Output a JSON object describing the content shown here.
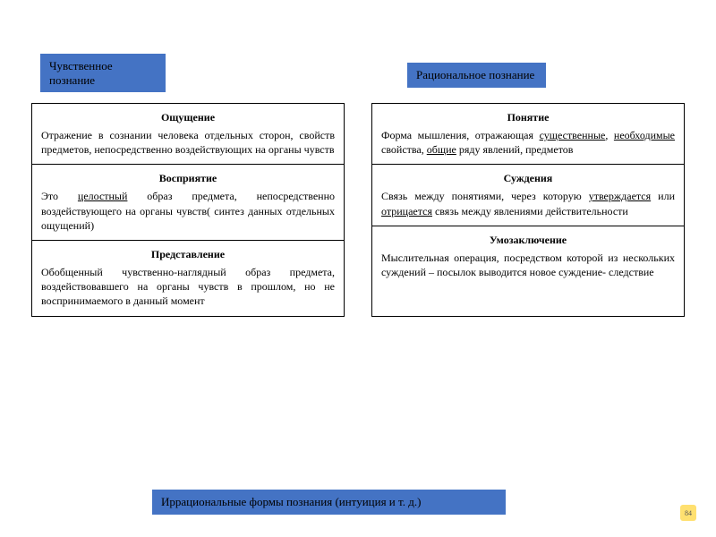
{
  "headers": {
    "left": "Чувственное познание",
    "right": "Рациональное познание"
  },
  "left_col": [
    {
      "title": "Ощущение",
      "body_html": "Отражение в сознании человека отдельных сторон, свойств предметов, непосредственно воздействующих на органы чувств"
    },
    {
      "title": "Восприятие",
      "body_html": "Это <span class='u'>целостный</span> образ предмета, непосредственно воздействующего на органы чувств( синтез данных отдельных ощущений)"
    },
    {
      "title": "Представление",
      "body_html": "Обобщенный чувственно-наглядный образ предмета, воздействовавшего на органы чувств в прошлом, но не воспринимаемого в данный момент"
    }
  ],
  "right_col": [
    {
      "title": "Понятие",
      "body_html": "Форма мышления, отражающая <span class='u'>существенные</span>, <span class='u'>необходимые</span> свойства, <span class='u'>общие</span> ряду явлений, предметов"
    },
    {
      "title": "Суждения",
      "body_html": "Связь между понятиями, через которую <span class='u'>утверждается</span> или <span class='u'>отрицается</span> связь между явлениями действительности"
    },
    {
      "title": "Умозаключение",
      "body_html": "Мыслительная операция, посредством которой из нескольких суждений – посылок выводится новое суждение- следствие"
    }
  ],
  "footer": "Иррациональные формы познания (интуиция и т. д.)",
  "badge": "84",
  "colors": {
    "accent": "#4473c4",
    "border": "#000000",
    "badge_bg": "#ffe070"
  }
}
